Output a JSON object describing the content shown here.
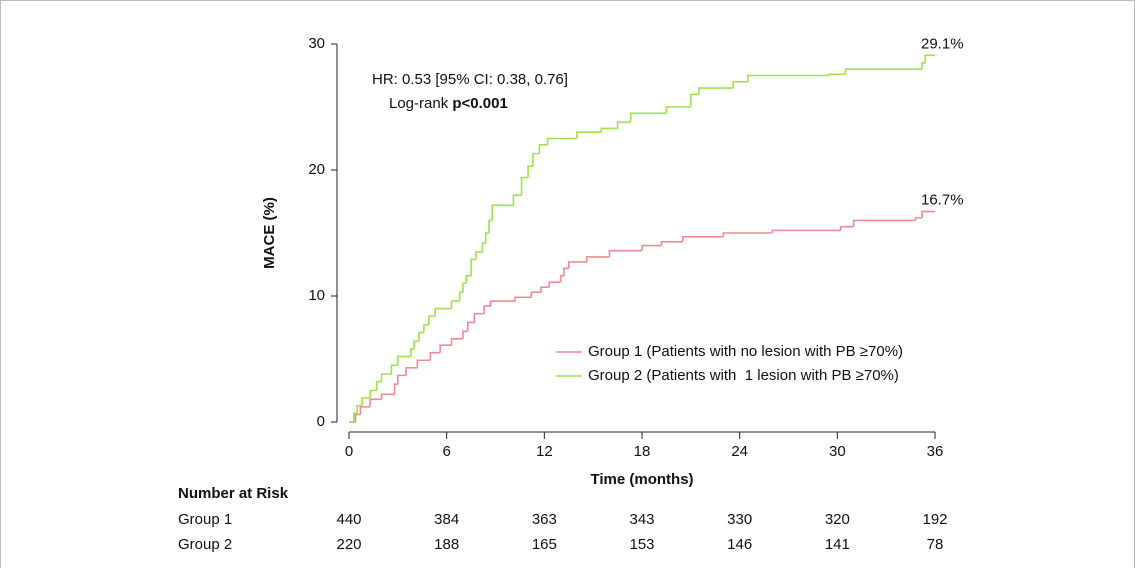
{
  "chart_data": {
    "type": "step",
    "x_label": "Time (months)",
    "y_label": "MACE (%)",
    "xlim": [
      0,
      36
    ],
    "xticks": [
      0,
      6,
      12,
      18,
      24,
      30,
      36
    ],
    "ylim": [
      0,
      30
    ],
    "yticks": [
      0,
      10,
      20,
      30
    ],
    "annotations": {
      "hr": "HR: 0.53 [95% CI: 0.38, 0.76]",
      "logrank": "Log-rank",
      "p_value": "p<0.001"
    },
    "series": [
      {
        "name": "Group 1 (Patients with no lesion with PB ≥70%)",
        "color": "#f08a92",
        "end_label": "16.7%",
        "x": [
          0,
          0.4,
          0.7,
          1.3,
          2,
          2.8,
          3,
          3.5,
          4.2,
          5,
          5.6,
          6.3,
          7,
          7.3,
          7.7,
          8.3,
          8.7,
          10.2,
          11.2,
          11.8,
          12.3,
          13,
          13.2,
          13.5,
          14.6,
          16,
          18,
          19.2,
          20.5,
          23,
          26,
          30.2,
          31,
          34.8,
          35.2,
          36
        ],
        "values": [
          0,
          0.6,
          1.2,
          1.8,
          2.2,
          3.0,
          3.7,
          4.3,
          4.9,
          5.5,
          6.1,
          6.6,
          7.2,
          7.9,
          8.6,
          9.2,
          9.6,
          9.9,
          10.3,
          10.7,
          11.1,
          11.6,
          12.2,
          12.7,
          13.1,
          13.6,
          14.0,
          14.3,
          14.7,
          15.0,
          15.2,
          15.5,
          16.0,
          16.2,
          16.7,
          16.7
        ]
      },
      {
        "name": "Group 2 (Patients with  1 lesion with PB ≥70%)",
        "color": "#9ee24a",
        "end_label": "29.1%",
        "x": [
          0,
          0.3,
          0.5,
          0.8,
          1.3,
          1.7,
          2,
          2.6,
          3,
          3.8,
          4,
          4.3,
          4.6,
          4.9,
          5.3,
          6.3,
          6.8,
          7,
          7.2,
          7.5,
          7.8,
          8.2,
          8.4,
          8.6,
          8.8,
          10.1,
          10.6,
          11,
          11.3,
          11.7,
          12.2,
          14,
          15.5,
          16.5,
          17.3,
          19.5,
          21,
          21.5,
          23.6,
          24.5,
          29.5,
          30.5,
          35.2,
          35.4,
          36
        ],
        "values": [
          0,
          0.7,
          1.3,
          1.9,
          2.5,
          3.2,
          3.8,
          4.5,
          5.2,
          5.8,
          6.4,
          7.1,
          7.7,
          8.4,
          9.0,
          9.6,
          10.3,
          11.0,
          11.6,
          12.9,
          13.5,
          14.2,
          15.0,
          16.0,
          17.2,
          18.0,
          19.4,
          20.3,
          21.3,
          22.0,
          22.5,
          23.0,
          23.3,
          23.8,
          24.5,
          25.0,
          26.0,
          26.5,
          27.0,
          27.5,
          27.6,
          28.0,
          28.5,
          29.1,
          29.1
        ]
      }
    ]
  },
  "risk_table": {
    "title": "Number at Risk",
    "rows": [
      {
        "name": "Group 1",
        "values": [
          440,
          384,
          363,
          343,
          330,
          320,
          192
        ]
      },
      {
        "name": "Group 2",
        "values": [
          220,
          188,
          165,
          153,
          146,
          141,
          78
        ]
      }
    ]
  }
}
